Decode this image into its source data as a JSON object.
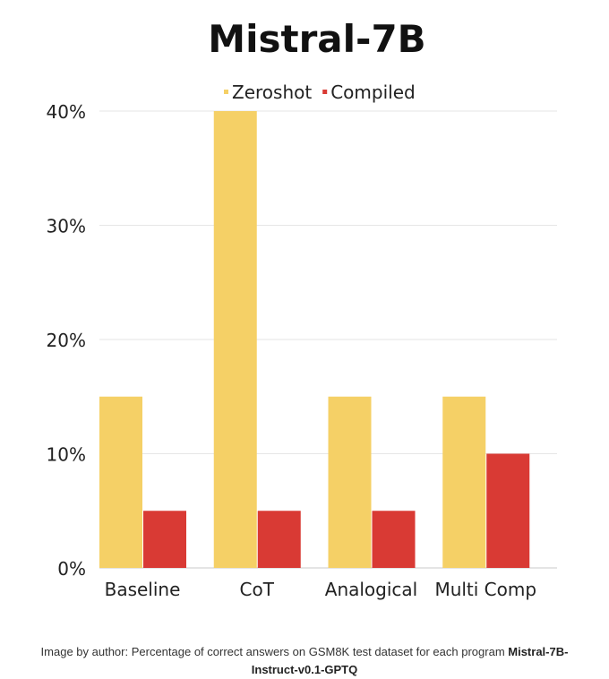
{
  "chart_data": {
    "type": "bar",
    "title": "Mistral-7B",
    "categories": [
      "Baseline",
      "CoT",
      "Analogical",
      "Multi Comp"
    ],
    "series": [
      {
        "name": "Zeroshot",
        "color": "#F5D066",
        "values": [
          15,
          40,
          15,
          15
        ]
      },
      {
        "name": "Compiled",
        "color": "#D93A34",
        "values": [
          5,
          5,
          5,
          10
        ]
      }
    ],
    "ylim": [
      0,
      40
    ],
    "yticks": [
      0,
      10,
      20,
      30,
      40
    ],
    "ytick_labels": [
      "0%",
      "10%",
      "20%",
      "30%",
      "40%"
    ],
    "grid": true,
    "legend": "top-center"
  },
  "caption": {
    "text": "Image by author: Percentage of correct answers on GSM8K test dataset for each program ",
    "bold_line1": "Mistral-7B-",
    "bold_line2": "Instruct-v0.1-GPTQ"
  }
}
